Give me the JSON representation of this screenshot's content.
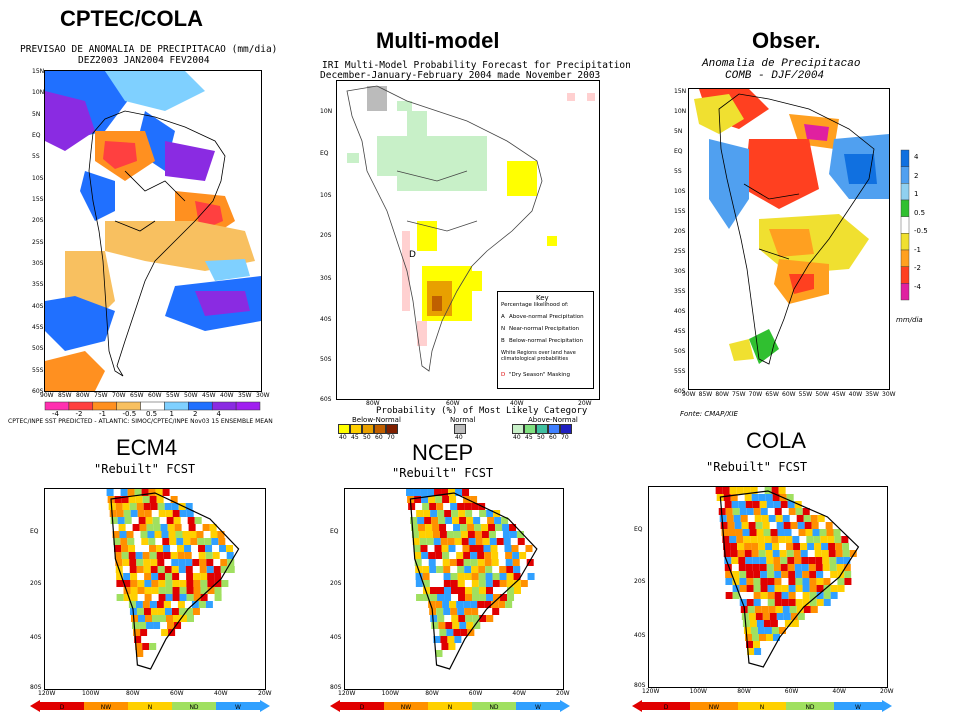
{
  "panels": {
    "cptec": {
      "title": "CPTEC/COLA",
      "subtitle1": "PREVISAO DE ANOMALIA DE PRECIPITACAO (mm/dia)",
      "subtitle2": "DEZ2003 JAN2004 FEV2004",
      "footer": "CPTEC/INPE SST   PREDICTED - ATLANTIC: SIMOC/CPTEC/INPE Nov03 15 ENSEMBLE MEAN",
      "lat_ticks": [
        "15N",
        "10N",
        "5N",
        "EQ",
        "5S",
        "10S",
        "15S",
        "20S",
        "25S",
        "30S",
        "35S",
        "40S",
        "45S",
        "50S",
        "55S",
        "60S"
      ],
      "lon_ticks": [
        "90W",
        "85W",
        "80W",
        "75W",
        "70W",
        "65W",
        "60W",
        "55W",
        "50W",
        "45W",
        "40W",
        "35W",
        "30W"
      ],
      "colorbar_labels": [
        "-4",
        "-2",
        "-1",
        "-0.5",
        "0.5",
        "1",
        "2",
        "4"
      ],
      "colors": [
        "#ff2fb0",
        "#ff4040",
        "#ff9020",
        "#f8c060",
        "#ffffff",
        "#7fd0ff",
        "#2070ff",
        "#8a2be2",
        "#a020f0"
      ]
    },
    "multimodel": {
      "title": "Multi-model",
      "subtitle1": "IRI Multi-Model Probability Forecast for Precipitation",
      "subtitle2": "December-January-February 2004  made November 2003",
      "lat_ticks": [
        "10N",
        "EQ",
        "10S",
        "20S",
        "30S",
        "40S",
        "50S",
        "60S"
      ],
      "lon_ticks": [
        "80W",
        "60W",
        "40W",
        "20W"
      ],
      "key_title": "Key",
      "key_lines": [
        "Percentage likelihood of:",
        "Above-normal Precipitation",
        "Near-normal Precipitation",
        "Below-normal Precipitation",
        "White Regions over land have climatological probabilities",
        "\"Dry Season\" Masking"
      ],
      "key_letters": [
        "A",
        "N",
        "B",
        "D"
      ],
      "prob_label": "Probability (%) of Most Likely Category",
      "below_label": "Below-Normal",
      "normal_label": "Normal",
      "above_label": "Above-Normal",
      "below_values": [
        "40",
        "45",
        "50",
        "60",
        "70"
      ],
      "normal_values": [
        "40"
      ],
      "above_values": [
        "40",
        "45",
        "50",
        "60",
        "70"
      ],
      "below_colors": [
        "#ffff00",
        "#ffd000",
        "#e8a000",
        "#c06000",
        "#802000"
      ],
      "normal_colors": [
        "#bbbbbb"
      ],
      "above_colors": [
        "#c8f0c8",
        "#80e080",
        "#40c0a0",
        "#4080ff",
        "#2020c0"
      ],
      "map_letter": "D"
    },
    "obser": {
      "title": "Obser.",
      "subtitle1": "Anomalia de Precipitacao",
      "subtitle2": "COMB - DJF/2004",
      "source": "Fonte: CMAP/XIE",
      "units": "mm/dia",
      "lat_ticks": [
        "15N",
        "10N",
        "5N",
        "EQ",
        "5S",
        "10S",
        "15S",
        "20S",
        "25S",
        "30S",
        "35S",
        "40S",
        "45S",
        "50S",
        "55S",
        "60S"
      ],
      "lon_ticks": [
        "90W",
        "85W",
        "80W",
        "75W",
        "70W",
        "65W",
        "60W",
        "55W",
        "50W",
        "45W",
        "40W",
        "35W",
        "30W"
      ],
      "colorbar_labels": [
        "4",
        "2",
        "1",
        "0.5",
        "-0.5",
        "-1",
        "-2",
        "-4"
      ],
      "colorbar_colors": [
        "#1070e0",
        "#50a0f0",
        "#90d0f0",
        "#30c030",
        "#ffffff",
        "#f0e030",
        "#ffa020",
        "#ff4020",
        "#e020a0"
      ]
    },
    "ecm4": {
      "title": "ECM4",
      "subtitle": "\"Rebuilt\" FCST",
      "lat_ticks": [
        "EQ",
        "20S",
        "40S",
        "80S"
      ],
      "lon_ticks": [
        "120W",
        "100W",
        "80W",
        "60W",
        "40W",
        "20W"
      ],
      "category_labels": [
        "D",
        "NW",
        "N",
        "ND",
        "W"
      ]
    },
    "ncep": {
      "title": "NCEP",
      "subtitle": "\"Rebuilt\" FCST",
      "lat_ticks": [
        "EQ",
        "20S",
        "40S",
        "80S"
      ],
      "lon_ticks": [
        "120W",
        "100W",
        "80W",
        "60W",
        "40W",
        "20W"
      ],
      "category_labels": [
        "D",
        "NW",
        "N",
        "ND",
        "W"
      ]
    },
    "cola": {
      "title": "COLA",
      "subtitle": "\"Rebuilt\" FCST",
      "lat_ticks": [
        "EQ",
        "20S",
        "40S",
        "80S"
      ],
      "lon_ticks": [
        "120W",
        "100W",
        "80W",
        "60W",
        "40W",
        "20W"
      ],
      "category_labels": [
        "D",
        "NW",
        "N",
        "ND",
        "W"
      ]
    }
  },
  "category_colors": [
    "#e00000",
    "#ff9000",
    "#ffd000",
    "#a0e060",
    "#30a0ff"
  ],
  "chart_data": [
    {
      "type": "heatmap",
      "title": "CPTEC/COLA",
      "subtitle": "PREVISAO DE ANOMALIA DE PRECIPITACAO (mm/dia)",
      "xlabel": "",
      "ylabel": "",
      "xlim": [
        -90,
        -30
      ],
      "ylim": [
        -60,
        15
      ],
      "colorbar": [
        -4,
        -2,
        -1,
        -0.5,
        0.5,
        1,
        2,
        4
      ]
    },
    {
      "type": "heatmap",
      "title": "Multi-model",
      "subtitle": "IRI Multi-Model Probability Forecast for Precipitation",
      "xlim": [
        -90,
        -20
      ],
      "ylim": [
        -60,
        15
      ],
      "categories": [
        "Below-Normal",
        "Normal",
        "Above-Normal"
      ],
      "levels": [
        40,
        45,
        50,
        60,
        70
      ]
    },
    {
      "type": "heatmap",
      "title": "Obser.",
      "subtitle": "Anomalia de Precipitacao COMB - DJF/2004",
      "xlim": [
        -90,
        -30
      ],
      "ylim": [
        -60,
        15
      ],
      "colorbar": [
        4,
        2,
        1,
        0.5,
        -0.5,
        -1,
        -2,
        -4
      ]
    },
    {
      "type": "heatmap",
      "title": "ECM4",
      "subtitle": "\"Rebuilt\" FCST",
      "xlim": [
        -120,
        -20
      ],
      "ylim": [
        -80,
        15
      ],
      "categories": [
        "D",
        "NW",
        "N",
        "ND",
        "W"
      ]
    },
    {
      "type": "heatmap",
      "title": "NCEP",
      "subtitle": "\"Rebuilt\" FCST",
      "xlim": [
        -120,
        -20
      ],
      "ylim": [
        -80,
        15
      ],
      "categories": [
        "D",
        "NW",
        "N",
        "ND",
        "W"
      ]
    },
    {
      "type": "heatmap",
      "title": "COLA",
      "subtitle": "\"Rebuilt\" FCST",
      "xlim": [
        -120,
        -20
      ],
      "ylim": [
        -80,
        15
      ],
      "categories": [
        "D",
        "NW",
        "N",
        "ND",
        "W"
      ]
    }
  ]
}
